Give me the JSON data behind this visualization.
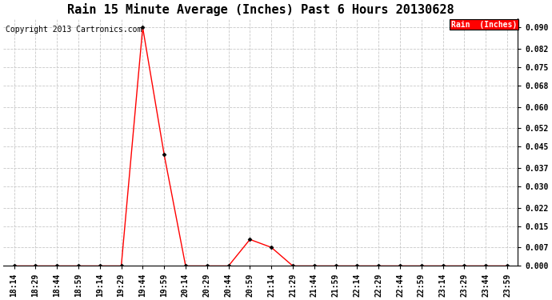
{
  "title": "Rain 15 Minute Average (Inches) Past 6 Hours 20130628",
  "copyright": "Copyright 2013 Cartronics.com",
  "legend_label": "Rain  (Inches)",
  "legend_bg": "#ff0000",
  "legend_text_color": "#ffffff",
  "line_color": "#ff0000",
  "marker_color": "#000000",
  "background_color": "#ffffff",
  "grid_color": "#c8c8c8",
  "x_labels": [
    "18:14",
    "18:29",
    "18:44",
    "18:59",
    "19:14",
    "19:29",
    "19:44",
    "19:59",
    "20:14",
    "20:29",
    "20:44",
    "20:59",
    "21:14",
    "21:29",
    "21:44",
    "21:59",
    "22:14",
    "22:29",
    "22:44",
    "22:59",
    "23:14",
    "23:29",
    "23:44",
    "23:59"
  ],
  "y_values": [
    0.0,
    0.0,
    0.0,
    0.0,
    0.0,
    0.0,
    0.09,
    0.042,
    0.0,
    0.0,
    0.0,
    0.01,
    0.007,
    0.0,
    0.0,
    0.0,
    0.0,
    0.0,
    0.0,
    0.0,
    0.0,
    0.0,
    0.0,
    0.0
  ],
  "yticks": [
    0.0,
    0.007,
    0.015,
    0.022,
    0.03,
    0.037,
    0.045,
    0.052,
    0.06,
    0.068,
    0.075,
    0.082,
    0.09
  ],
  "ylim": [
    0.0,
    0.0935
  ],
  "title_fontsize": 11,
  "axis_fontsize": 7,
  "copyright_fontsize": 7
}
